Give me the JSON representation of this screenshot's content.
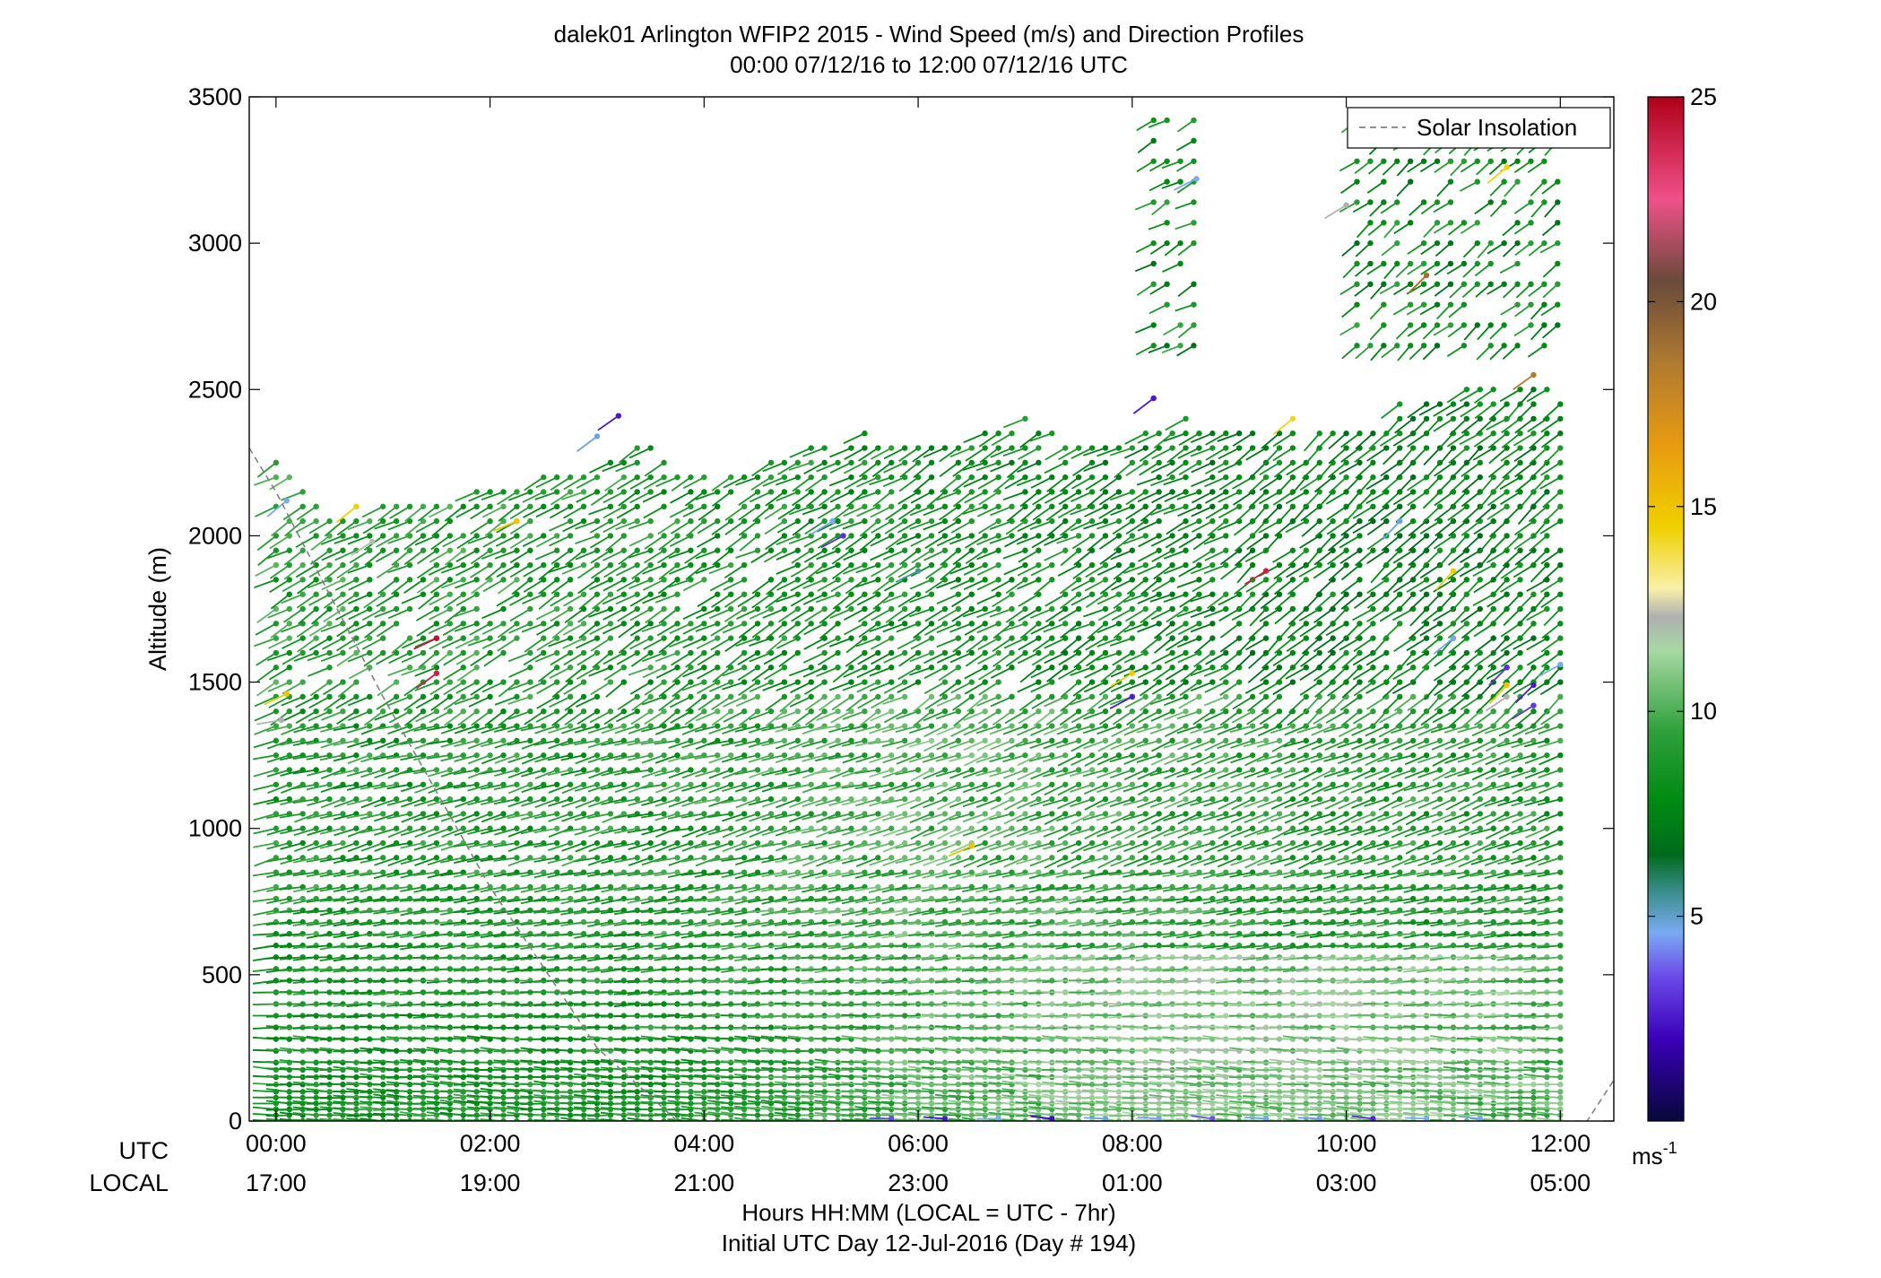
{
  "chart_data": {
    "type": "wind-barb-profile",
    "title": "dalek01 Arlington WFIP2 2015 - Wind Speed (m/s) and Direction Profiles",
    "subtitle": "00:00 07/12/16 to 12:00 07/12/16  UTC",
    "ylabel": "Altitude (m)",
    "xlabel": "Hours HH:MM  (LOCAL = UTC - 7hr)",
    "xlabel2": "Initial UTC Day 12-Jul-2016 (Day # 194)",
    "ylim": [
      0,
      3500
    ],
    "xlim_hours": [
      -0.25,
      12.5
    ],
    "yticks": [
      0,
      500,
      1000,
      1500,
      2000,
      2500,
      3000,
      3500
    ],
    "yticklabels": [
      "0",
      "500",
      "1000",
      "1500",
      "2000",
      "2500",
      "3000",
      "3500"
    ],
    "xticks_hours": [
      0,
      2,
      4,
      6,
      8,
      10,
      12
    ],
    "utc_row_label": "UTC",
    "local_row_label": "LOCAL",
    "utc_tick_labels": [
      "00:00",
      "02:00",
      "04:00",
      "06:00",
      "08:00",
      "10:00",
      "12:00"
    ],
    "local_tick_labels": [
      "17:00",
      "19:00",
      "21:00",
      "23:00",
      "01:00",
      "03:00",
      "05:00"
    ],
    "legend": {
      "label": "Solar Insolation",
      "placement": "top-right",
      "style": "dashed",
      "color": "#808080"
    },
    "solar_insolation": {
      "hours": [
        -0.25,
        0,
        1,
        2,
        3,
        3.75,
        12.25,
        12.5
      ],
      "altitude": [
        2300,
        2150,
        1450,
        800,
        250,
        0,
        0,
        140
      ]
    },
    "colorbar": {
      "unit_label": "ms",
      "unit_exponent": "-1",
      "range": [
        0,
        25
      ],
      "ticks": [
        5,
        10,
        15,
        20,
        25
      ],
      "ticklabels": [
        "5",
        "10",
        "15",
        "20",
        "25"
      ],
      "stops": [
        {
          "v": 0,
          "c": "#07083a"
        },
        {
          "v": 2,
          "c": "#3a00b8"
        },
        {
          "v": 3.5,
          "c": "#6a48e8"
        },
        {
          "v": 4.6,
          "c": "#7aaaf2"
        },
        {
          "v": 5.6,
          "c": "#3a8e8c"
        },
        {
          "v": 6.5,
          "c": "#006a1c"
        },
        {
          "v": 7.8,
          "c": "#008a12"
        },
        {
          "v": 9.5,
          "c": "#2ea03a"
        },
        {
          "v": 11.5,
          "c": "#a8d8a4"
        },
        {
          "v": 12.3,
          "c": "#b0b0b0"
        },
        {
          "v": 13,
          "c": "#f8f0a8"
        },
        {
          "v": 14.5,
          "c": "#f0d000"
        },
        {
          "v": 16.5,
          "c": "#e89a10"
        },
        {
          "v": 18.5,
          "c": "#b07a30"
        },
        {
          "v": 20.5,
          "c": "#6a4a3a"
        },
        {
          "v": 22.5,
          "c": "#f0508a"
        },
        {
          "v": 25,
          "c": "#b00018"
        }
      ]
    },
    "time_step_hours": 0.125,
    "levels_m": [
      0,
      20,
      40,
      60,
      80,
      100,
      125,
      150,
      175,
      200,
      240,
      280,
      320,
      360,
      400,
      440,
      480,
      520,
      560,
      600,
      640,
      680,
      720,
      760,
      800,
      850,
      900,
      950,
      1000,
      1050,
      1100,
      1150,
      1200,
      1250,
      1300,
      1350,
      1400,
      1450,
      1500,
      1550,
      1600,
      1650,
      1700,
      1750,
      1800,
      1850,
      1900,
      1950,
      2000,
      2050,
      2100,
      2150,
      2200,
      2250,
      2300,
      2350,
      2400,
      2450,
      2500
    ],
    "top_hours": [
      0.05,
      0.5,
      1,
      1.5,
      2,
      2.5,
      3,
      3.5,
      4,
      4.5,
      5,
      5.5,
      6,
      6.5,
      7,
      7.5,
      8,
      8.5,
      9,
      9.5,
      10,
      10.5,
      11,
      11.5,
      12
    ],
    "top_altitude_m": [
      2260,
      2050,
      2100,
      2110,
      2170,
      2200,
      2240,
      2320,
      2230,
      2240,
      2300,
      2350,
      2320,
      2340,
      2400,
      2330,
      2340,
      2400,
      2380,
      2380,
      2400,
      2460,
      2480,
      2560,
      2600
    ],
    "speed_hours": [
      0,
      2,
      4,
      6,
      8,
      10,
      12
    ],
    "speed_low_m_s": [
      8.5,
      8.7,
      8.8,
      10,
      11,
      11,
      10.2
    ],
    "speed_mid_m_s": [
      8.8,
      8.8,
      9,
      10,
      9.5,
      9,
      8.8
    ],
    "speed_upper_m_s": [
      9.2,
      9,
      8.6,
      8.4,
      8,
      7.5,
      7.8
    ],
    "upper_band_2500_3500": {
      "band1_hours": [
        8.2,
        8.6
      ],
      "band2_hours": [
        10.1,
        12.0
      ],
      "speed_m_s": 8.2
    },
    "highlight_points": [
      {
        "h": 1.5,
        "alt": 1650,
        "spd": 24.5
      },
      {
        "h": 1.5,
        "alt": 1530,
        "spd": 24
      },
      {
        "h": 9.25,
        "alt": 1880,
        "spd": 24
      },
      {
        "h": 0.1,
        "alt": 1460,
        "spd": 14.8
      },
      {
        "h": 0.75,
        "alt": 2100,
        "spd": 14.5
      },
      {
        "h": 2.25,
        "alt": 2050,
        "spd": 14.8
      },
      {
        "h": 6.5,
        "alt": 940,
        "spd": 15
      },
      {
        "h": 8.0,
        "alt": 1530,
        "spd": 14.6
      },
      {
        "h": 9.5,
        "alt": 2400,
        "spd": 14.2
      },
      {
        "h": 11.0,
        "alt": 1880,
        "spd": 14.6
      },
      {
        "h": 11.5,
        "alt": 1490,
        "spd": 14.8
      },
      {
        "h": 11.5,
        "alt": 3260,
        "spd": 14.4
      },
      {
        "h": 10.75,
        "alt": 2890,
        "spd": 19
      },
      {
        "h": 11.75,
        "alt": 2550,
        "spd": 18.5
      },
      {
        "h": 3.2,
        "alt": 2410,
        "spd": 2.5
      },
      {
        "h": 5.3,
        "alt": 2000,
        "spd": 3
      },
      {
        "h": 8.2,
        "alt": 2470,
        "spd": 2.5
      },
      {
        "h": 8.0,
        "alt": 1450,
        "spd": 2.6
      },
      {
        "h": 11.5,
        "alt": 1550,
        "spd": 3
      },
      {
        "h": 11.75,
        "alt": 1490,
        "spd": 2.5
      },
      {
        "h": 11.75,
        "alt": 1420,
        "spd": 3.2
      },
      {
        "h": 0.1,
        "alt": 2120,
        "spd": 4.6
      },
      {
        "h": 3.0,
        "alt": 2340,
        "spd": 4.8
      },
      {
        "h": 5.2,
        "alt": 2050,
        "spd": 4.6
      },
      {
        "h": 6.0,
        "alt": 1880,
        "spd": 5.4
      },
      {
        "h": 8.6,
        "alt": 3220,
        "spd": 4.6
      },
      {
        "h": 10.5,
        "alt": 2050,
        "spd": 4.8
      },
      {
        "h": 11.0,
        "alt": 1650,
        "spd": 4.7
      },
      {
        "h": 12.0,
        "alt": 1560,
        "spd": 4.6
      },
      {
        "h": 10.0,
        "alt": 3130,
        "spd": 12.3
      },
      {
        "h": 11.5,
        "alt": 1450,
        "spd": 12.3
      },
      {
        "h": 0.9,
        "alt": 1980,
        "spd": 12
      },
      {
        "h": 0.05,
        "alt": 1370,
        "spd": 12.2
      }
    ],
    "low_level_slow_points_hours": [
      5.75,
      6.25,
      6.75,
      7.25,
      7.75,
      8.25,
      8.75,
      9.25,
      9.75,
      10.25,
      10.75,
      11.25
    ],
    "low_level_slow_speed_m_s": [
      3.5,
      2.5,
      4.6,
      2.2,
      4.8,
      4.5,
      3.6,
      4.7,
      4.4,
      2.8,
      4.6,
      4.5
    ]
  }
}
